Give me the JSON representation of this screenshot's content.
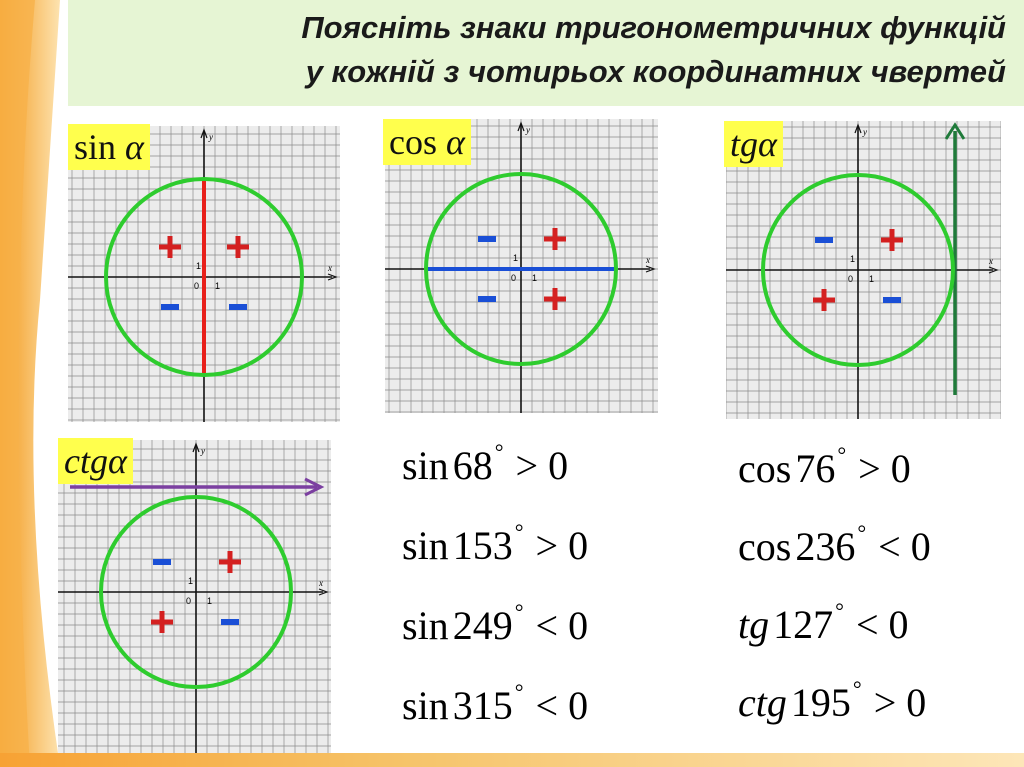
{
  "title": {
    "line1": "Поясніть знаки тригонометричних функцій",
    "line2": "у кожній з чотирьох координатних чвертей"
  },
  "axis_labels": {
    "x": "x",
    "y": "y",
    "origin": "0",
    "one": "1"
  },
  "colors": {
    "circle": "#2ecc2e",
    "sin_axis": "#e8201a",
    "cos_axis": "#1a4fd6",
    "tg_axis": "#1f7a3a",
    "ctg_axis": "#7b3fa0",
    "plus": "#d42020",
    "minus": "#1a4fd6",
    "title_bg": "#e6f5d4",
    "label_bg": "#ffff4d"
  },
  "panels": [
    {
      "key": "sin",
      "name_text": "sin",
      "greek": "α",
      "signs": {
        "q1": "+",
        "q2": "+",
        "q3": "-",
        "q4": "-"
      }
    },
    {
      "key": "cos",
      "name_text": "cos",
      "greek": "α",
      "signs": {
        "q1": "+",
        "q2": "-",
        "q3": "-",
        "q4": "+"
      }
    },
    {
      "key": "tg",
      "name_text": "tg",
      "greek": "α",
      "signs": {
        "q1": "+",
        "q2": "-",
        "q3": "+",
        "q4": "-"
      }
    },
    {
      "key": "ctg",
      "name_text": "ctg",
      "greek": "α",
      "signs": {
        "q1": "+",
        "q2": "-",
        "q3": "+",
        "q4": "-"
      }
    }
  ],
  "examples_left": [
    {
      "func": "sin",
      "angle": "68",
      "deg": "°",
      "rel": ">",
      "rhs": "0"
    },
    {
      "func": "sin",
      "angle": "153",
      "deg": "°",
      "rel": ">",
      "rhs": "0"
    },
    {
      "func": "sin",
      "angle": "249",
      "deg": "°",
      "rel": "<",
      "rhs": "0"
    },
    {
      "func": "sin",
      "angle": "315",
      "deg": "°",
      "rel": "<",
      "rhs": "0"
    }
  ],
  "examples_right": [
    {
      "func": "cos",
      "angle": "76",
      "deg": "°",
      "rel": ">",
      "rhs": "0"
    },
    {
      "func": "cos",
      "angle": "236",
      "deg": "°",
      "rel": "<",
      "rhs": "0"
    },
    {
      "func": "tg",
      "angle": "127",
      "deg": "°",
      "rel": "<",
      "rhs": "0"
    },
    {
      "func": "ctg",
      "angle": "195",
      "deg": "°",
      "rel": ">",
      "rhs": "0"
    }
  ]
}
